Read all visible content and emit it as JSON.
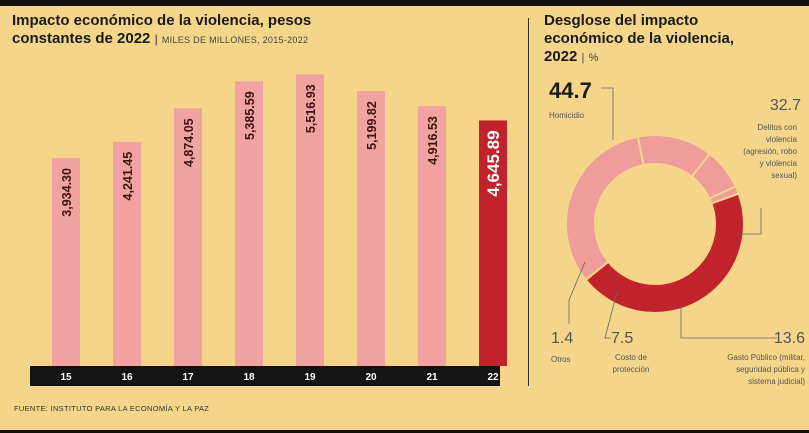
{
  "left_title_line1": "Impacto económico de la violencia, pesos",
  "left_title_line2": "constantes de 2022",
  "left_title_sep": "|",
  "left_unit": "MILES DE MILLONES, 2015-2022",
  "right_title_line1": "Desglose del impacto",
  "right_title_line2": "económico de la violencia,",
  "right_title_line3": "2022",
  "right_title_sep": "|",
  "right_unit": "%",
  "source": "FUENTE: INSTITUTO PARA LA ECONOMÍA Y LA PAZ",
  "colors": {
    "bar": "#f0a3a0",
    "bar_highlight": "#c1232c",
    "donut_main": "#c1232c",
    "donut_other": "#ee9d9a",
    "axis_band": "#141414",
    "background": "#f5d58a"
  },
  "chart_data": [
    {
      "type": "bar",
      "categories": [
        "15",
        "16",
        "17",
        "18",
        "19",
        "20",
        "21",
        "22"
      ],
      "values": [
        3934.3,
        4241.45,
        4874.05,
        5385.59,
        5516.93,
        5199.82,
        4916.53,
        4645.89
      ],
      "labels": [
        "3,934.30",
        "4,241.45",
        "4,874.05",
        "5,385.59",
        "5,516.93",
        "5,199.82",
        "4,916.53",
        "4,645.89"
      ],
      "highlight_index": 7,
      "title": "Impacto económico de la violencia, pesos constantes de 2022",
      "xlabel": "",
      "ylabel": ""
    },
    {
      "type": "pie",
      "title": "Desglose del impacto económico de la violencia, 2022",
      "slices": [
        {
          "label": "Homicidio",
          "value": 44.7,
          "display": "44.7"
        },
        {
          "label": "Delitos con violencia (agresión, robo y violencia sexual)",
          "value": 32.7,
          "display": "32.7"
        },
        {
          "label": "Gasto Público (militar, seguridad pública y sistema judicial)",
          "value": 13.6,
          "display": "13.6"
        },
        {
          "label": "Costo de protección",
          "value": 7.5,
          "display": "7.5"
        },
        {
          "label": "Otros",
          "value": 1.4,
          "display": "1.4"
        }
      ]
    }
  ],
  "donut_labels": {
    "homicidio": {
      "value": "44.7",
      "text": "Homicidio"
    },
    "delitos": {
      "value": "32.7",
      "lines": [
        "Delitos con",
        "violencia",
        "(agresión, robo",
        "y violencia",
        "sexual)"
      ]
    },
    "gasto": {
      "value": "13.6",
      "lines": [
        "Gasto Público (militar,",
        "seguridad pública y",
        "sistema judicial)"
      ]
    },
    "costo": {
      "value": "7.5",
      "lines": [
        "Costo de",
        "protección"
      ]
    },
    "otros": {
      "value": "1.4",
      "text": "Otros"
    }
  }
}
